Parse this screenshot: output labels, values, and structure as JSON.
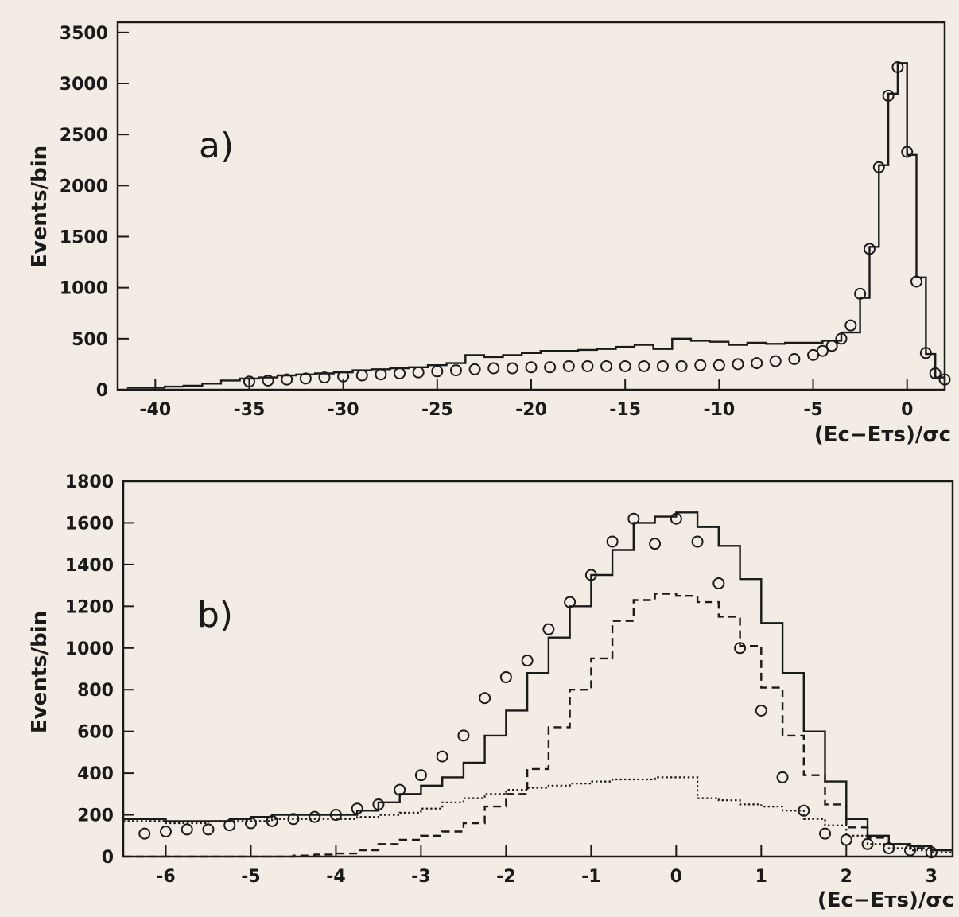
{
  "colors": {
    "paper": "#f3ece4",
    "ink": "#1a1a1a"
  },
  "chart_data": [
    {
      "type": "line",
      "panel_label": "a)",
      "ylabel": "Events/bin",
      "xlabel": "(Eᴄ−Eᴛѕ)/σᴄ",
      "xlim": [
        -42,
        2
      ],
      "ylim": [
        0,
        3600
      ],
      "xticks": [
        -40,
        -35,
        -30,
        -25,
        -20,
        -15,
        -10,
        -5,
        0
      ],
      "yticks": [
        0,
        500,
        1000,
        1500,
        2000,
        2500,
        3000,
        3500
      ],
      "series": [
        {
          "style": "solid-step",
          "x": [
            -41.5,
            -40.5,
            -39.5,
            -38.5,
            -37.5,
            -36.5,
            -35.5,
            -34.5,
            -33.5,
            -32.5,
            -31.5,
            -30.5,
            -29.5,
            -28.5,
            -27.5,
            -26.5,
            -25.5,
            -24.5,
            -23.5,
            -22.5,
            -21.5,
            -20.5,
            -19.5,
            -18.5,
            -17.5,
            -16.5,
            -15.5,
            -14.5,
            -13.5,
            -12.5,
            -11.5,
            -10.5,
            -9.5,
            -8.5,
            -7.5,
            -6.5,
            -5.5,
            -4.5,
            -3.5,
            -2.5,
            -2,
            -1.5,
            -1,
            -0.5,
            0,
            0.5,
            1,
            1.5,
            2
          ],
          "y": [
            20,
            20,
            30,
            40,
            60,
            90,
            110,
            120,
            140,
            150,
            160,
            170,
            190,
            200,
            210,
            220,
            240,
            260,
            340,
            320,
            340,
            360,
            380,
            380,
            390,
            400,
            420,
            440,
            400,
            500,
            480,
            470,
            440,
            460,
            450,
            460,
            460,
            480,
            560,
            900,
            1400,
            2200,
            2900,
            3200,
            2300,
            1100,
            350,
            120,
            60
          ]
        },
        {
          "style": "circle-markers",
          "x": [
            -35,
            -34,
            -33,
            -32,
            -31,
            -30,
            -29,
            -28,
            -27,
            -26,
            -25,
            -24,
            -23,
            -22,
            -21,
            -20,
            -19,
            -18,
            -17,
            -16,
            -15,
            -14,
            -13,
            -12,
            -11,
            -10,
            -9,
            -8,
            -7,
            -6,
            -5,
            -4.5,
            -4,
            -3.5,
            -3,
            -2.5,
            -2,
            -1.5,
            -1,
            -0.5,
            0,
            0.5,
            1,
            1.5,
            2
          ],
          "y": [
            80,
            90,
            100,
            110,
            120,
            130,
            140,
            150,
            160,
            170,
            180,
            190,
            200,
            210,
            210,
            220,
            220,
            230,
            230,
            230,
            230,
            230,
            230,
            230,
            240,
            240,
            250,
            260,
            280,
            300,
            340,
            380,
            430,
            500,
            630,
            940,
            1380,
            2180,
            2880,
            3160,
            2330,
            1060,
            360,
            160,
            100
          ]
        }
      ]
    },
    {
      "type": "line",
      "panel_label": "b)",
      "ylabel": "Events/bin",
      "xlabel": "(Eᴄ−Eᴛѕ)/σᴄ",
      "xlim": [
        -6.5,
        3.25
      ],
      "ylim": [
        0,
        1800
      ],
      "xticks": [
        -6,
        -5,
        -4,
        -3,
        -2,
        -1,
        0,
        1,
        2,
        3
      ],
      "yticks": [
        0,
        200,
        400,
        600,
        800,
        1000,
        1200,
        1400,
        1600,
        1800
      ],
      "series": [
        {
          "style": "solid-step",
          "x": [
            -6.5,
            -6.25,
            -6,
            -5.75,
            -5.5,
            -5.25,
            -5,
            -4.75,
            -4.5,
            -4.25,
            -4,
            -3.75,
            -3.5,
            -3.25,
            -3,
            -2.75,
            -2.5,
            -2.25,
            -2,
            -1.75,
            -1.5,
            -1.25,
            -1,
            -0.75,
            -0.5,
            -0.25,
            0,
            0.25,
            0.5,
            0.75,
            1,
            1.25,
            1.5,
            1.75,
            2,
            2.25,
            2.5,
            2.75,
            3
          ],
          "y": [
            180,
            180,
            170,
            170,
            170,
            180,
            190,
            200,
            200,
            200,
            200,
            220,
            260,
            300,
            340,
            380,
            450,
            580,
            700,
            880,
            1050,
            1200,
            1350,
            1470,
            1600,
            1630,
            1650,
            1580,
            1490,
            1330,
            1120,
            880,
            600,
            360,
            180,
            100,
            60,
            50,
            30
          ]
        },
        {
          "style": "dashed-step",
          "x": [
            -6.5,
            -6.25,
            -6,
            -5.75,
            -5.5,
            -5.25,
            -5,
            -4.75,
            -4.5,
            -4.25,
            -4,
            -3.75,
            -3.5,
            -3.25,
            -3,
            -2.75,
            -2.5,
            -2.25,
            -2,
            -1.75,
            -1.5,
            -1.25,
            -1,
            -0.75,
            -0.5,
            -0.25,
            0,
            0.25,
            0.5,
            0.75,
            1,
            1.25,
            1.5,
            1.75,
            2,
            2.25,
            2.5,
            2.75,
            3
          ],
          "y": [
            0,
            0,
            0,
            0,
            0,
            0,
            0,
            0,
            5,
            10,
            15,
            30,
            60,
            80,
            100,
            120,
            160,
            240,
            300,
            420,
            620,
            800,
            950,
            1130,
            1230,
            1260,
            1250,
            1220,
            1150,
            1010,
            810,
            580,
            390,
            250,
            140,
            90,
            60,
            40,
            30
          ]
        },
        {
          "style": "dotted-step",
          "x": [
            -6.5,
            -6.25,
            -6,
            -5.75,
            -5.5,
            -5.25,
            -5,
            -4.75,
            -4.5,
            -4.25,
            -4,
            -3.75,
            -3.5,
            -3.25,
            -3,
            -2.75,
            -2.5,
            -2.25,
            -2,
            -1.75,
            -1.5,
            -1.25,
            -1,
            -0.75,
            -0.5,
            -0.25,
            0,
            0.25,
            0.5,
            0.75,
            1,
            1.25,
            1.5,
            1.75,
            2,
            2.25,
            2.5,
            2.75,
            3
          ],
          "y": [
            170,
            170,
            160,
            160,
            170,
            170,
            170,
            180,
            180,
            180,
            180,
            190,
            200,
            210,
            230,
            260,
            280,
            300,
            320,
            330,
            340,
            350,
            360,
            370,
            370,
            380,
            380,
            280,
            270,
            250,
            240,
            220,
            180,
            150,
            100,
            60,
            40,
            30,
            20
          ]
        },
        {
          "style": "circle-markers",
          "x": [
            -6.25,
            -6,
            -5.75,
            -5.5,
            -5.25,
            -5,
            -4.75,
            -4.5,
            -4.25,
            -4,
            -3.75,
            -3.5,
            -3.25,
            -3,
            -2.75,
            -2.5,
            -2.25,
            -2,
            -1.75,
            -1.5,
            -1.25,
            -1,
            -0.75,
            -0.5,
            -0.25,
            0,
            0.25,
            0.5,
            0.75,
            1,
            1.25,
            1.5,
            1.75,
            2,
            2.25,
            2.5,
            2.75,
            3
          ],
          "y": [
            110,
            120,
            130,
            130,
            150,
            160,
            170,
            180,
            190,
            200,
            230,
            250,
            320,
            390,
            480,
            580,
            760,
            860,
            940,
            1090,
            1220,
            1350,
            1510,
            1620,
            1500,
            1620,
            1510,
            1310,
            1000,
            700,
            380,
            220,
            110,
            80,
            60,
            40,
            30,
            20
          ]
        }
      ]
    }
  ]
}
